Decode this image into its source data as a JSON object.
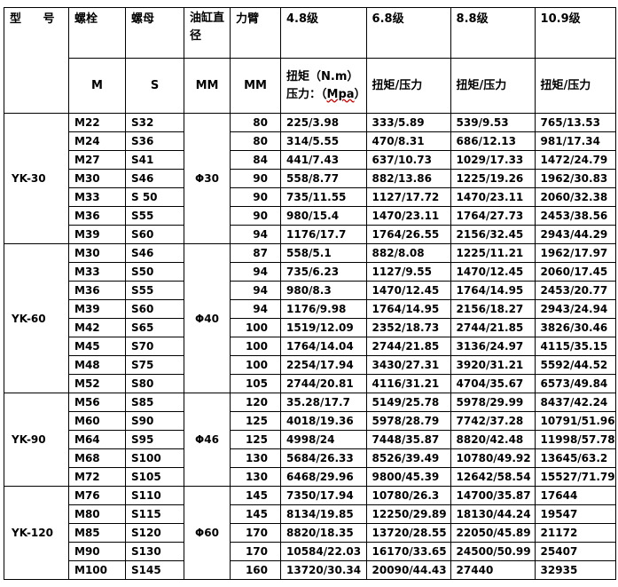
{
  "header": {
    "model": "型 号",
    "bolt": "螺栓",
    "nut": "螺母",
    "cylinder_dia": "油缸直径",
    "arm": "力臂",
    "grades": [
      "4.8级",
      "6.8级",
      "8.8级",
      "10.9级"
    ],
    "bolt_unit": "M",
    "nut_unit": "S",
    "cyl_unit": "MM",
    "arm_unit": "MM",
    "torque_label_1": "扭矩（N.m）",
    "torque_label_2": "压力：（",
    "torque_label_err": "Mpa",
    "torque_label_3": "）",
    "torque_pressure": "扭矩/压力"
  },
  "groups": [
    {
      "model": "YK-30",
      "cylinder": "Φ30",
      "rows": [
        [
          "M22",
          "S32",
          "80",
          "225/3.98",
          "333/5.89",
          "539/9.53",
          "765/13.53"
        ],
        [
          "M24",
          "S36",
          "80",
          "314/5.55",
          "470/8.31",
          "686/12.13",
          "981/17.34"
        ],
        [
          "M27",
          "S41",
          "84",
          "441/7.43",
          "637/10.73",
          "1029/17.33",
          "1472/24.79"
        ],
        [
          "M30",
          "S46",
          "90",
          "558/8.77",
          "882/13.86",
          "1225/19.26",
          "1962/30.83"
        ],
        [
          "M33",
          "S 50",
          "90",
          "735/11.55",
          "1127/17.72",
          "1470/23.11",
          "2060/32.38"
        ],
        [
          "M36",
          "S55",
          "90",
          "980/15.4",
          "1470/23.11",
          "1764/27.73",
          "2453/38.56"
        ],
        [
          "M39",
          "S60",
          "94",
          "1176/17.7",
          "1764/26.55",
          "2156/32.45",
          "2943/44.29"
        ]
      ]
    },
    {
      "model": "YK-60",
      "cylinder": "Φ40",
      "rows": [
        [
          "M30",
          "S46",
          "87",
          "558/5.1",
          "882/8.08",
          "1225/11.21",
          "1962/17.97"
        ],
        [
          "M33",
          "S50",
          "94",
          "735/6.23",
          "1127/9.55",
          "1470/12.45",
          "2060/17.45"
        ],
        [
          "M36",
          "S55",
          "94",
          "980/8.3",
          "1470/12.45",
          "1764/14.95",
          "2453/20.77"
        ],
        [
          "M39",
          "S60",
          "94",
          "1176/9.98",
          "1764/14.95",
          "2156/18.27",
          "2943/24.94"
        ],
        [
          "M42",
          "S65",
          "100",
          "1519/12.09",
          "2352/18.73",
          "2744/21.85",
          "3826/30.46"
        ],
        [
          "M45",
          "S70",
          "100",
          "1764/14.04",
          "2744/21.85",
          "3136/24.97",
          "4115/35.15"
        ],
        [
          "M48",
          "S75",
          "100",
          "2254/17.94",
          "3430/27.31",
          "3920/31.21",
          "5592/44.52"
        ],
        [
          "M52",
          "S80",
          "105",
          "2744/20.81",
          "4116/31.21",
          "4704/35.67",
          "6573/49.84"
        ]
      ]
    },
    {
      "model": "YK-90",
      "cylinder": "Φ46",
      "rows": [
        [
          "M56",
          "S85",
          "120",
          "35.28/17.7",
          "5149/25.78",
          "5978/29.99",
          "8437/42.24"
        ],
        [
          "M60",
          "S90",
          "125",
          "4018/19.36",
          "5978/28.79",
          "7742/37.28",
          "10791/51.96"
        ],
        [
          "M64",
          "S95",
          "125",
          "4998/24",
          "7448/35.87",
          "8820/42.48",
          "11998/57.78"
        ],
        [
          "M68",
          "S100",
          "130",
          "5684/26.33",
          "8526/39.49",
          "10780/49.92",
          "13645/63.2"
        ],
        [
          "M72",
          "S105",
          "130",
          "6468/29.96",
          "9800/45.39",
          "12642/58.54",
          "15527/71.79"
        ]
      ]
    },
    {
      "model": "YK-120",
      "cylinder": "Φ60",
      "rows": [
        [
          "M76",
          "S110",
          "145",
          "7350/17.94",
          "10780/26.3",
          "14700/35.87",
          "17644"
        ],
        [
          "M80",
          "S115",
          "145",
          "8134/19.85",
          "12250/29.89",
          "18130/44.24",
          "19547"
        ],
        [
          "M85",
          "S120",
          "170",
          "8820/18.35",
          "13720/28.55",
          "22050/45.89",
          "21172"
        ],
        [
          "M90",
          "S130",
          "170",
          "10584/22.03",
          "16170/33.65",
          "24500/50.99",
          "25407"
        ],
        [
          "M100",
          "S145",
          "160",
          "13720/30.34",
          "20090/44.43",
          "27440",
          "32935"
        ]
      ]
    }
  ]
}
